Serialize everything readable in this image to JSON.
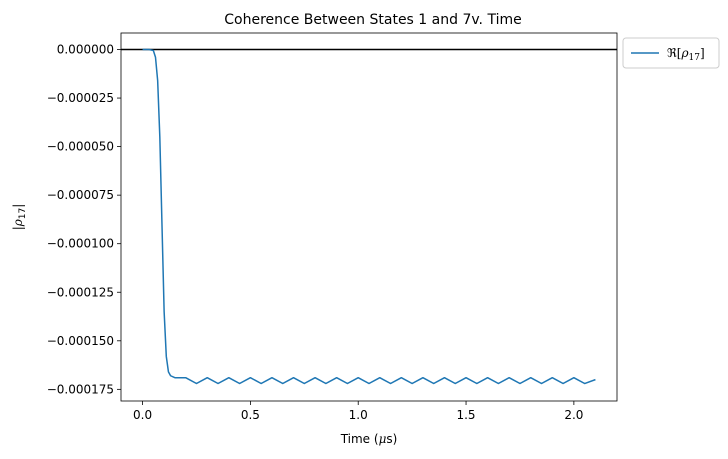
{
  "chart_data": {
    "type": "line",
    "title": "Coherence Between States 1 and 7v. Time",
    "xlabel": "Time (μs)",
    "ylabel": "|ρ17|",
    "xlim": [
      -0.1,
      2.2
    ],
    "ylim": [
      -0.000181,
      8.5e-06
    ],
    "x_ticks": [
      0.0,
      0.5,
      1.0,
      1.5,
      2.0
    ],
    "x_tick_labels": [
      "0.0",
      "0.5",
      "1.0",
      "1.5",
      "2.0"
    ],
    "y_ticks": [
      0.0,
      -2.5e-05,
      -5e-05,
      -7.5e-05,
      -0.0001,
      -0.000125,
      -0.00015,
      -0.000175
    ],
    "y_tick_labels": [
      "0.000000",
      "−0.000025",
      "−0.000050",
      "−0.000075",
      "−0.000100",
      "−0.000125",
      "−0.000150",
      "−0.000175"
    ],
    "grid": false,
    "legend_position": "outside-upper-right",
    "hline": {
      "y": 0,
      "color": "#000000"
    },
    "series": [
      {
        "name": "ℜ[ρ17]",
        "color": "#1f77b4",
        "x": [
          0.0,
          0.03,
          0.05,
          0.06,
          0.07,
          0.08,
          0.09,
          0.1,
          0.11,
          0.12,
          0.13,
          0.15,
          0.2,
          0.25,
          0.3,
          0.35,
          0.4,
          0.45,
          0.5,
          0.55,
          0.6,
          0.65,
          0.7,
          0.75,
          0.8,
          0.85,
          0.9,
          0.95,
          1.0,
          1.05,
          1.1,
          1.15,
          1.2,
          1.25,
          1.3,
          1.35,
          1.4,
          1.45,
          1.5,
          1.55,
          1.6,
          1.65,
          1.7,
          1.75,
          1.8,
          1.85,
          1.9,
          1.95,
          2.0,
          2.05,
          2.1
        ],
        "y": [
          0.0,
          0.0,
          -5e-07,
          -4e-06,
          -1.6e-05,
          -4.5e-05,
          -9e-05,
          -0.000135,
          -0.000158,
          -0.000166,
          -0.000168,
          -0.000169,
          -0.000169,
          -0.000172,
          -0.000169,
          -0.000172,
          -0.000169,
          -0.000172,
          -0.000169,
          -0.000172,
          -0.000169,
          -0.000172,
          -0.000169,
          -0.000172,
          -0.000169,
          -0.000172,
          -0.000169,
          -0.000172,
          -0.000169,
          -0.000172,
          -0.000169,
          -0.000172,
          -0.000169,
          -0.000172,
          -0.000169,
          -0.000172,
          -0.000169,
          -0.000172,
          -0.000169,
          -0.000172,
          -0.000169,
          -0.000172,
          -0.000169,
          -0.000172,
          -0.000169,
          -0.000172,
          -0.000169,
          -0.000172,
          -0.000169,
          -0.000172,
          -0.00017
        ]
      }
    ]
  }
}
